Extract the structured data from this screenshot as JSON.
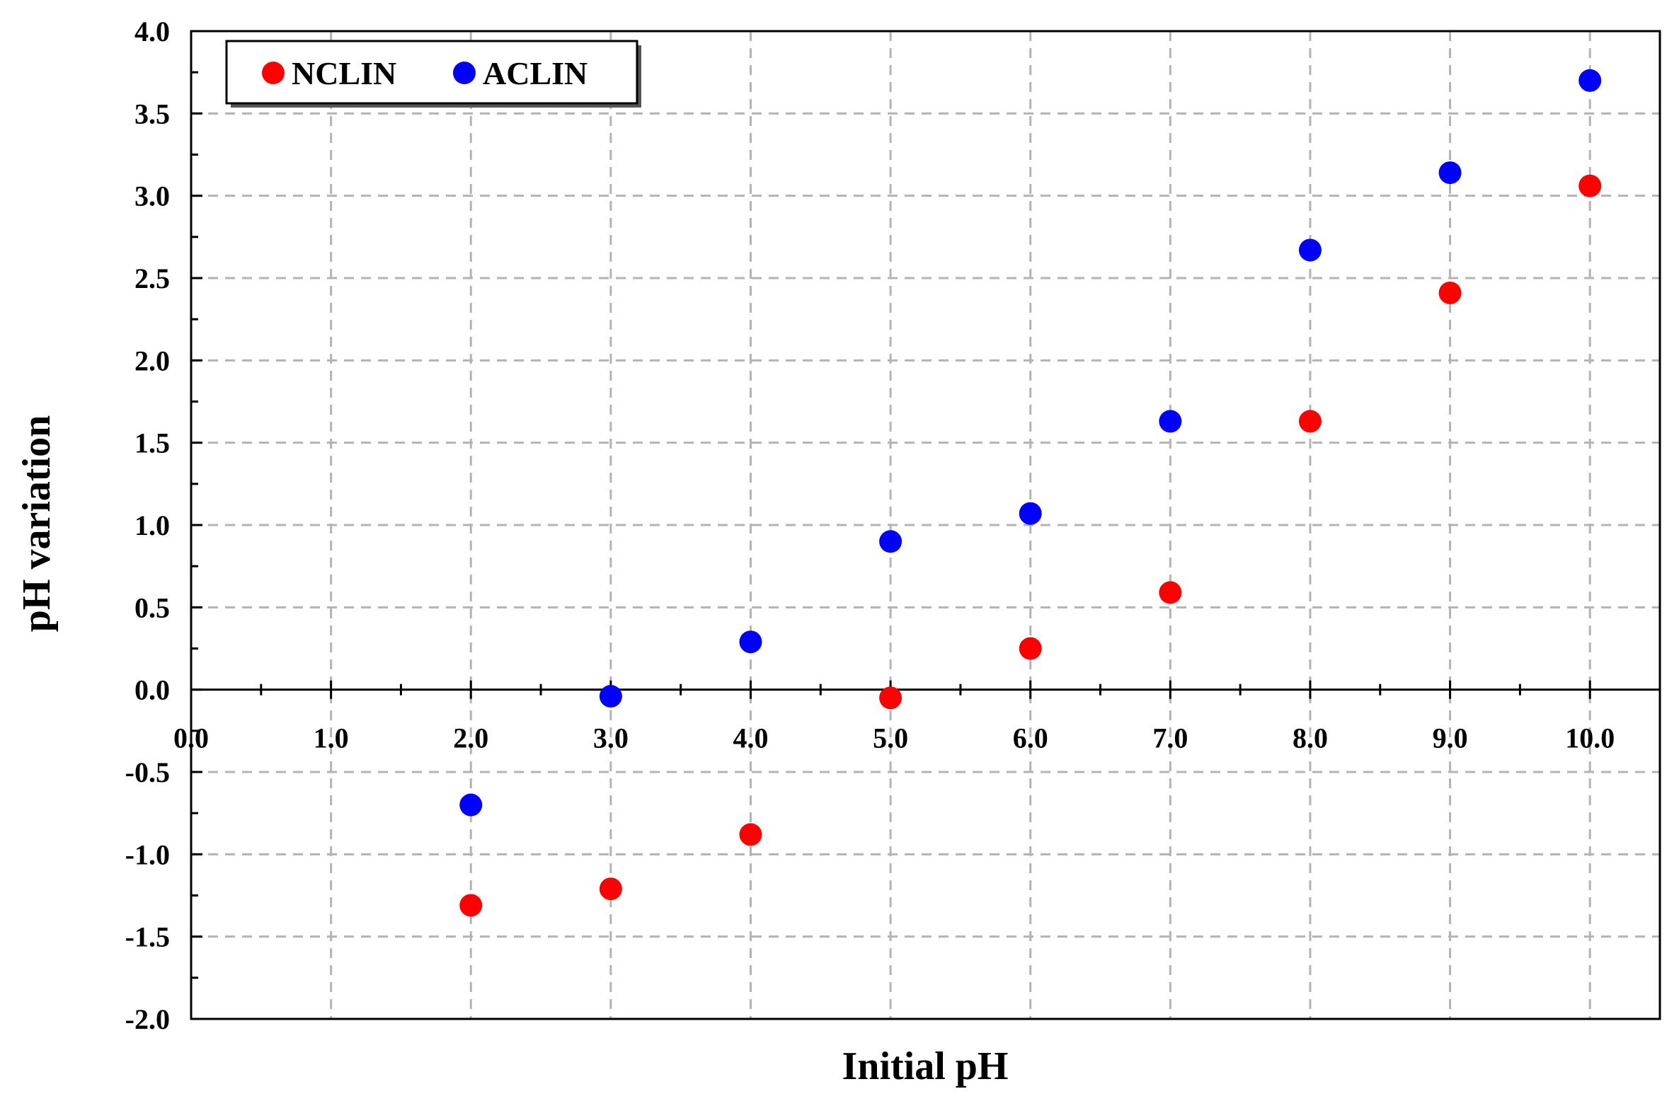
{
  "chart_data": {
    "type": "scatter",
    "title": "",
    "xlabel": "Initial pH",
    "ylabel": "pH variation",
    "xlim": [
      0,
      10.5
    ],
    "ylim": [
      -2.0,
      4.0
    ],
    "x_ticks": [
      "0.0",
      "1.0",
      "2.0",
      "3.0",
      "4.0",
      "5.0",
      "6.0",
      "7.0",
      "8.0",
      "9.0",
      "10.0"
    ],
    "y_ticks": [
      "-2.0",
      "-1.5",
      "-1.0",
      "-0.5",
      "0.0",
      "0.5",
      "1.0",
      "1.5",
      "2.0",
      "2.5",
      "3.0",
      "3.5",
      "4.0"
    ],
    "grid": true,
    "legend_position": "top-left",
    "series": [
      {
        "name": "NCLIN",
        "color": "#ff0000",
        "x": [
          2,
          3,
          4,
          5,
          6,
          7,
          8,
          9,
          10
        ],
        "y": [
          -1.31,
          -1.21,
          -0.88,
          -0.05,
          0.25,
          0.59,
          1.63,
          2.41,
          3.06
        ]
      },
      {
        "name": "ACLIN",
        "color": "#0000ff",
        "x": [
          2,
          3,
          4,
          5,
          6,
          7,
          8,
          9,
          10
        ],
        "y": [
          -0.7,
          -0.04,
          0.29,
          0.9,
          1.07,
          1.63,
          2.67,
          3.14,
          3.7
        ]
      }
    ]
  }
}
